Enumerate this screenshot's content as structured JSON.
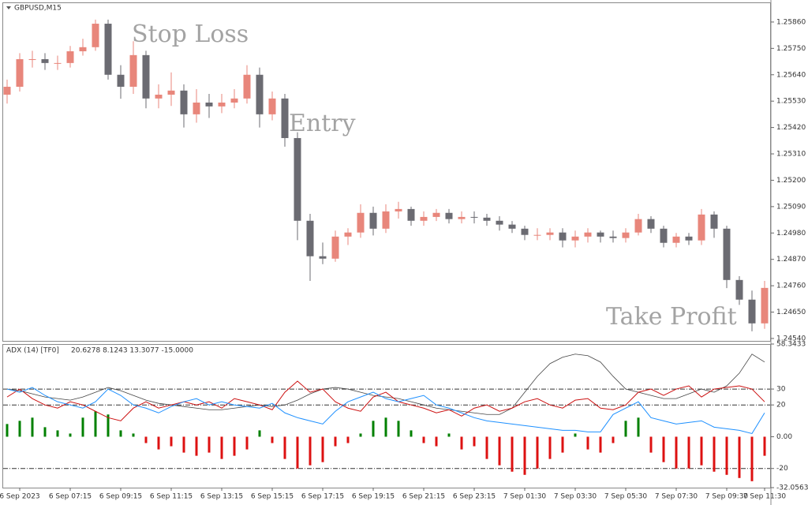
{
  "chart_data": [
    {
      "type": "candlestick",
      "title": "GBPUSD,M15",
      "annotations": [
        "Stop Loss",
        "Entry",
        "Take Profit"
      ],
      "up_color": "#e8867b",
      "down_color": "#6b6b72",
      "ylim": [
        1.2453,
        1.25942
      ],
      "yticks": [
        {
          "value": 1.2586,
          "label": "1.25860"
        },
        {
          "value": 1.2575,
          "label": "1.25750"
        },
        {
          "value": 1.2564,
          "label": "1.25640"
        },
        {
          "value": 1.2553,
          "label": "1.25530"
        },
        {
          "value": 1.2542,
          "label": "1.25420"
        },
        {
          "value": 1.2531,
          "label": "1.25310"
        },
        {
          "value": 1.252,
          "label": "1.25200"
        },
        {
          "value": 1.2509,
          "label": "1.25090"
        },
        {
          "value": 1.2498,
          "label": "1.24980"
        },
        {
          "value": 1.2487,
          "label": "1.24870"
        },
        {
          "value": 1.2476,
          "label": "1.24760"
        },
        {
          "value": 1.2465,
          "label": "1.24650"
        },
        {
          "value": 1.2454,
          "label": "1.24540"
        }
      ],
      "ohlc": [
        [
          1.25557,
          1.2562,
          1.2552,
          1.2559
        ],
        [
          1.2559,
          1.2573,
          1.2557,
          1.25705
        ],
        [
          1.25705,
          1.2574,
          1.2567,
          1.25705
        ],
        [
          1.25705,
          1.2573,
          1.2566,
          1.25689
        ],
        [
          1.25689,
          1.2572,
          1.2566,
          1.25689
        ],
        [
          1.25689,
          1.2576,
          1.2567,
          1.25738
        ],
        [
          1.25738,
          1.2579,
          1.2572,
          1.25755
        ],
        [
          1.25755,
          1.2587,
          1.2574,
          1.25853
        ],
        [
          1.25853,
          1.2587,
          1.2562,
          1.2564
        ],
        [
          1.2564,
          1.2568,
          1.2554,
          1.2559
        ],
        [
          1.2559,
          1.2578,
          1.2556,
          1.25722
        ],
        [
          1.25722,
          1.2574,
          1.255,
          1.25541
        ],
        [
          1.25541,
          1.256,
          1.255,
          1.25557
        ],
        [
          1.25557,
          1.2565,
          1.2551,
          1.25574
        ],
        [
          1.25574,
          1.256,
          1.2542,
          1.25475
        ],
        [
          1.25475,
          1.2558,
          1.2544,
          1.25524
        ],
        [
          1.25524,
          1.2556,
          1.2546,
          1.25508
        ],
        [
          1.25508,
          1.2556,
          1.2548,
          1.25524
        ],
        [
          1.25524,
          1.2558,
          1.255,
          1.25541
        ],
        [
          1.25541,
          1.2568,
          1.2552,
          1.2564
        ],
        [
          1.2564,
          1.2567,
          1.2542,
          1.25475
        ],
        [
          1.25475,
          1.2557,
          1.2545,
          1.25541
        ],
        [
          1.25541,
          1.2556,
          1.2534,
          1.25376
        ],
        [
          1.25376,
          1.254,
          1.2495,
          1.25031
        ],
        [
          1.25031,
          1.2506,
          1.2478,
          1.24883
        ],
        [
          1.24883,
          1.2494,
          1.2485,
          1.24873
        ],
        [
          1.24873,
          1.2499,
          1.2486,
          1.24965
        ],
        [
          1.24965,
          1.25,
          1.2493,
          1.24982
        ],
        [
          1.24982,
          1.251,
          1.2496,
          1.25064
        ],
        [
          1.25064,
          1.2509,
          1.2497,
          1.24998
        ],
        [
          1.24998,
          1.251,
          1.2498,
          1.2507
        ],
        [
          1.2507,
          1.2511,
          1.2504,
          1.2508
        ],
        [
          1.2508,
          1.2509,
          1.2501,
          1.25031
        ],
        [
          1.25031,
          1.2507,
          1.2501,
          1.25047
        ],
        [
          1.25047,
          1.2508,
          1.2503,
          1.25064
        ],
        [
          1.25064,
          1.2508,
          1.2502,
          1.25038
        ],
        [
          1.25038,
          1.2507,
          1.2502,
          1.25047
        ],
        [
          1.25047,
          1.2507,
          1.2502,
          1.25044
        ],
        [
          1.25044,
          1.2506,
          1.2501,
          1.25031
        ],
        [
          1.25031,
          1.2505,
          1.2499,
          1.25015
        ],
        [
          1.25015,
          1.2503,
          1.2498,
          1.24998
        ],
        [
          1.24998,
          1.2501,
          1.2495,
          1.24972
        ],
        [
          1.24972,
          1.25,
          1.2495,
          1.24972
        ],
        [
          1.24972,
          1.25,
          1.2495,
          1.24982
        ],
        [
          1.24982,
          1.25,
          1.2492,
          1.24949
        ],
        [
          1.24949,
          1.2499,
          1.2492,
          1.24965
        ],
        [
          1.24965,
          1.25,
          1.2494,
          1.24982
        ],
        [
          1.24982,
          1.2499,
          1.2494,
          1.24965
        ],
        [
          1.24965,
          1.2499,
          1.2494,
          1.24959
        ],
        [
          1.24959,
          1.25,
          1.2494,
          1.24982
        ],
        [
          1.24982,
          1.2506,
          1.2497,
          1.25038
        ],
        [
          1.25038,
          1.2505,
          1.2498,
          1.24998
        ],
        [
          1.24998,
          1.2501,
          1.2492,
          1.24939
        ],
        [
          1.24939,
          1.2498,
          1.2492,
          1.24965
        ],
        [
          1.24965,
          1.2498,
          1.2493,
          1.24949
        ],
        [
          1.24949,
          1.2508,
          1.2493,
          1.25057
        ],
        [
          1.25057,
          1.2507,
          1.2496,
          1.24998
        ],
        [
          1.24998,
          1.2501,
          1.2475,
          1.24784
        ],
        [
          1.24784,
          1.248,
          1.2468,
          1.24702
        ],
        [
          1.24702,
          1.2474,
          1.2457,
          1.24603
        ],
        [
          1.24603,
          1.2478,
          1.2458,
          1.24751
        ]
      ]
    },
    {
      "type": "adx",
      "title": "ADX (14) [TF0]",
      "readout": "20.6278 8.1243 13.3077 -15.0000",
      "ylim": [
        -32.0563,
        58.3433
      ],
      "yticks": [
        58.3433,
        30,
        20,
        {
          "value": 0,
          "label": "0.00"
        },
        -20,
        -32.0563
      ],
      "levels": [
        30,
        20,
        -20
      ],
      "categories": [
        null,
        "6 Sep 2023",
        null,
        null,
        null,
        "6 Sep 07:15",
        null,
        null,
        null,
        "6 Sep 09:15",
        null,
        null,
        null,
        "6 Sep 11:15",
        null,
        null,
        null,
        "6 Sep 13:15",
        null,
        null,
        null,
        "6 Sep 15:15",
        null,
        null,
        null,
        "6 Sep 17:15",
        null,
        null,
        null,
        "6 Sep 19:15",
        null,
        null,
        null,
        "6 Sep 21:15",
        null,
        null,
        null,
        "6 Sep 23:15",
        null,
        null,
        null,
        "7 Sep 01:30",
        null,
        null,
        null,
        "7 Sep 03:30",
        null,
        null,
        null,
        "7 Sep 05:30",
        null,
        null,
        null,
        "7 Sep 07:30",
        null,
        null,
        null,
        "7 Sep 09:30",
        null,
        null,
        "7 Sep 11:30"
      ],
      "series": [
        {
          "color": "#444444",
          "values": [
            30,
            29,
            27,
            25,
            24,
            23,
            25,
            28,
            31,
            29,
            26,
            23,
            21,
            20,
            19,
            18,
            17,
            17,
            18,
            19,
            20,
            19,
            20,
            23,
            27,
            30,
            31,
            30,
            28,
            26,
            25,
            24,
            22,
            20,
            18,
            17,
            16,
            15,
            14,
            14,
            18,
            28,
            38,
            46,
            50,
            52,
            51,
            47,
            38,
            30,
            28,
            26,
            24,
            24,
            27,
            30,
            28,
            32,
            40,
            52,
            47
          ]
        },
        {
          "color": "#cc1111",
          "values": [
            25,
            30,
            24,
            20,
            18,
            22,
            20,
            16,
            12,
            10,
            18,
            22,
            18,
            20,
            22,
            20,
            22,
            18,
            24,
            22,
            20,
            17,
            28,
            35,
            28,
            30,
            22,
            18,
            16,
            25,
            28,
            22,
            20,
            18,
            15,
            17,
            13,
            18,
            20,
            16,
            18,
            22,
            24,
            20,
            18,
            23,
            24,
            18,
            17,
            20,
            28,
            30,
            26,
            30,
            32,
            25,
            30,
            31,
            32,
            30,
            22
          ]
        },
        {
          "color": "#1e90ff",
          "values": [
            30,
            28,
            31,
            26,
            22,
            20,
            18,
            22,
            30,
            26,
            20,
            18,
            15,
            19,
            22,
            24,
            20,
            22,
            20,
            19,
            18,
            21,
            15,
            12,
            10,
            8,
            16,
            22,
            25,
            28,
            24,
            22,
            24,
            26,
            20,
            18,
            15,
            12,
            10,
            9,
            8,
            7,
            6,
            5,
            4,
            4,
            3,
            3,
            14,
            18,
            22,
            12,
            10,
            8,
            9,
            10,
            6,
            5,
            4,
            2,
            15
          ]
        }
      ],
      "histogram": {
        "up_color": "#008000",
        "down_color": "#dd1111",
        "values": [
          8,
          10,
          12,
          6,
          4,
          2,
          12,
          16,
          14,
          4,
          2,
          -4,
          -8,
          -6,
          -10,
          -12,
          -10,
          -14,
          -12,
          -8,
          4,
          -4,
          -14,
          -20,
          -18,
          -16,
          -6,
          -4,
          2,
          10,
          12,
          10,
          4,
          -4,
          -6,
          2,
          -8,
          -6,
          -14,
          -18,
          -22,
          -24,
          -20,
          -14,
          -10,
          2,
          -8,
          -10,
          -4,
          10,
          12,
          -10,
          -16,
          -20,
          -20,
          -18,
          -22,
          -24,
          -26,
          -28,
          -12
        ]
      }
    }
  ]
}
